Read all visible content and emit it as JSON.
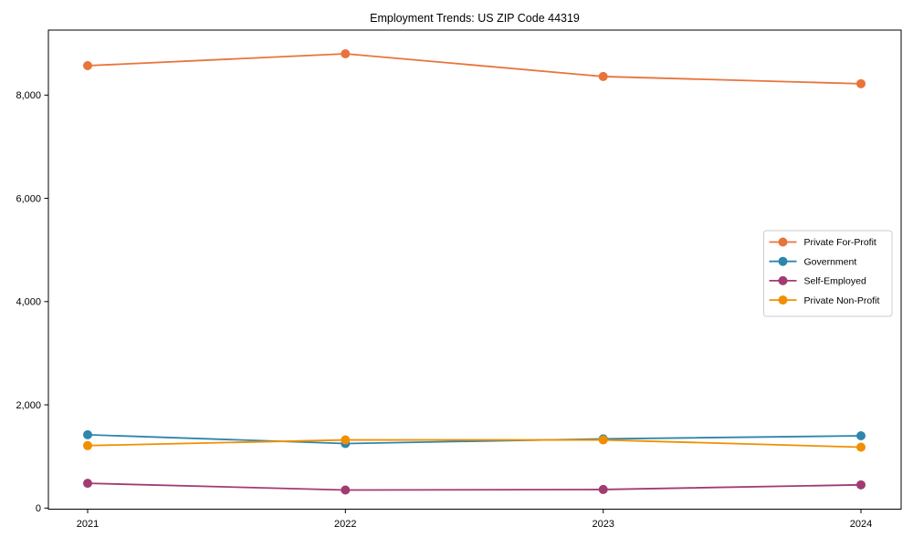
{
  "title": "Employment Trends: US ZIP Code 44319",
  "chart_data": {
    "type": "line",
    "x": [
      2021,
      2022,
      2023,
      2024
    ],
    "x_labels": [
      "2021",
      "2022",
      "2023",
      "2024"
    ],
    "series": [
      {
        "name": "Private For-Profit",
        "color": "#E8743B",
        "values": [
          8570,
          8800,
          8360,
          8220
        ]
      },
      {
        "name": "Government",
        "color": "#2E86AB",
        "values": [
          1420,
          1250,
          1340,
          1400
        ]
      },
      {
        "name": "Self-Employed",
        "color": "#A23B72",
        "values": [
          480,
          350,
          360,
          450
        ]
      },
      {
        "name": "Private Non-Profit",
        "color": "#F18F01",
        "values": [
          1210,
          1320,
          1320,
          1180
        ]
      }
    ],
    "title": "Employment Trends: US ZIP Code 44319",
    "xlabel": "",
    "ylabel": "",
    "ylim": [
      0,
      9260
    ],
    "yticks": [
      0,
      2000,
      4000,
      6000,
      8000
    ],
    "ytick_labels": [
      "0",
      "2,000",
      "4,000",
      "6,000",
      "8,000"
    ],
    "grid": false,
    "marker": "o",
    "legend_position": "center right",
    "legend_border_color": "#cccccc",
    "axis_color": "#000000",
    "background_color": "#ffffff"
  }
}
